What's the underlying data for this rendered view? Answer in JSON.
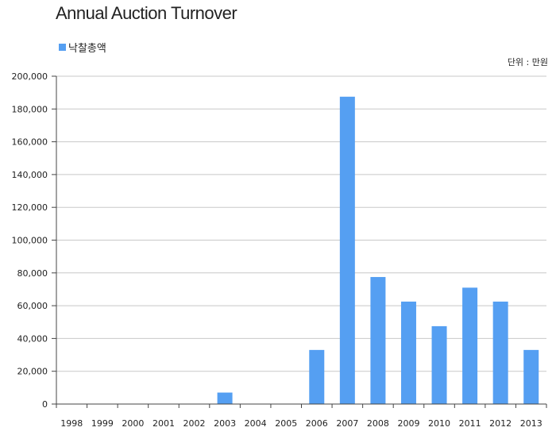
{
  "title": "Annual Auction Turnover",
  "unit_label": "단위 : 만원",
  "colors": {
    "bar": "#559ff2",
    "axis": "#444444",
    "grid": "#c8c8c8"
  },
  "chart_data": {
    "type": "bar",
    "title": "Annual Auction Turnover",
    "xlabel": "",
    "ylabel": "",
    "ylim": [
      0,
      200000
    ],
    "yticks": [
      0,
      20000,
      40000,
      60000,
      80000,
      100000,
      120000,
      140000,
      160000,
      180000,
      200000
    ],
    "ytick_labels": [
      "0",
      "20,000",
      "40,000",
      "60,000",
      "80,000",
      "100,000",
      "120,000",
      "140,000",
      "160,000",
      "180,000",
      "200,000"
    ],
    "grid": true,
    "legend": "top-left",
    "categories": [
      "1998",
      "1999",
      "2000",
      "2001",
      "2002",
      "2003",
      "2004",
      "2005",
      "2006",
      "2007",
      "2008",
      "2009",
      "2010",
      "2011",
      "2012",
      "2013"
    ],
    "series": [
      {
        "name": "낙찰총액",
        "values": [
          0,
          0,
          0,
          0,
          0,
          7000,
          0,
          0,
          33000,
          187500,
          77500,
          62500,
          47500,
          71000,
          62500,
          33000
        ]
      }
    ]
  }
}
